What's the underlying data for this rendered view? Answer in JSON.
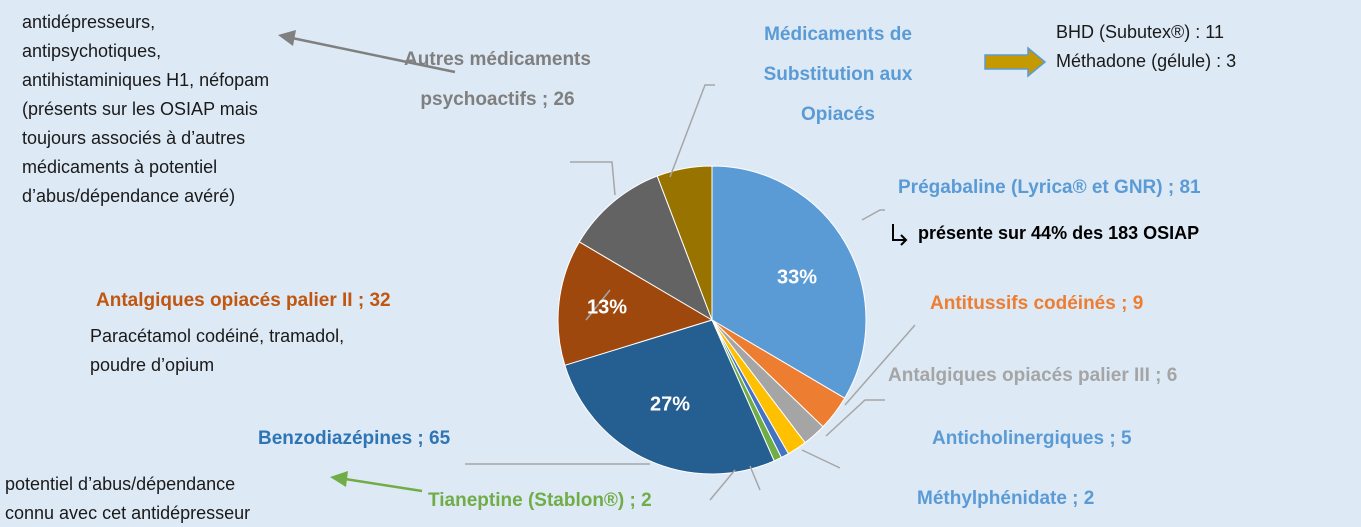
{
  "chart_data": {
    "type": "pie",
    "categories": [
      "Prégabaline (Lyrica® et GNR) ; 81",
      "Antitussifs codéinés ; 9",
      "Antalgiques opiacés palier III ; 6",
      "Anticholinergiques ; 5",
      "Méthylphénidate ; 2",
      "Tianeptine (Stablon®) ; 2",
      "Benzodiazépines ; 65",
      "Antalgiques opiacés palier II ; 32",
      "Autres médicaments psychoactifs ; 26",
      "Médicaments de Substitution aux Opiacés"
    ],
    "values": [
      81,
      9,
      6,
      5,
      2,
      2,
      65,
      32,
      26,
      14
    ],
    "colors": [
      "#5b9bd5",
      "#ed7d31",
      "#a5a5a5",
      "#ffc000",
      "#4472c4",
      "#70ad47",
      "#255e91",
      "#9e480e",
      "#636363",
      "#997300"
    ],
    "label_colors": [
      "#5b9bd5",
      "#ed7d31",
      "#a5a5a5",
      "#5b9bd5",
      "#5b9bd5",
      "#70ad47",
      "#2e75b6",
      "#c0560f",
      "#7f7f7f",
      "#5b9bd5"
    ],
    "slice_labels": [
      "33%",
      null,
      null,
      null,
      null,
      null,
      "27%",
      "13%",
      null,
      null
    ],
    "annotations": {
      "substitution_detail": [
        "BHD (Subutex®) : 11",
        "Méthadone (gélule) : 3"
      ],
      "pregabaline_note": "présente sur 44% des 183 OSIAP",
      "autres_note": [
        "antidépresseurs,",
        "antipsychotiques,",
        "antihistaminiques H1, néfopam",
        "(présents sur les OSIAP mais",
        "toujours associés à d’autres",
        "médicaments à potentiel",
        "d’abus/dépendance avéré)"
      ],
      "palier2_note": [
        "Paracétamol codéiné, tramadol,",
        "poudre d’opium"
      ],
      "tianeptine_note": [
        "potentiel d’abus/dépendance",
        "connu avec cet antidépresseur"
      ]
    }
  }
}
